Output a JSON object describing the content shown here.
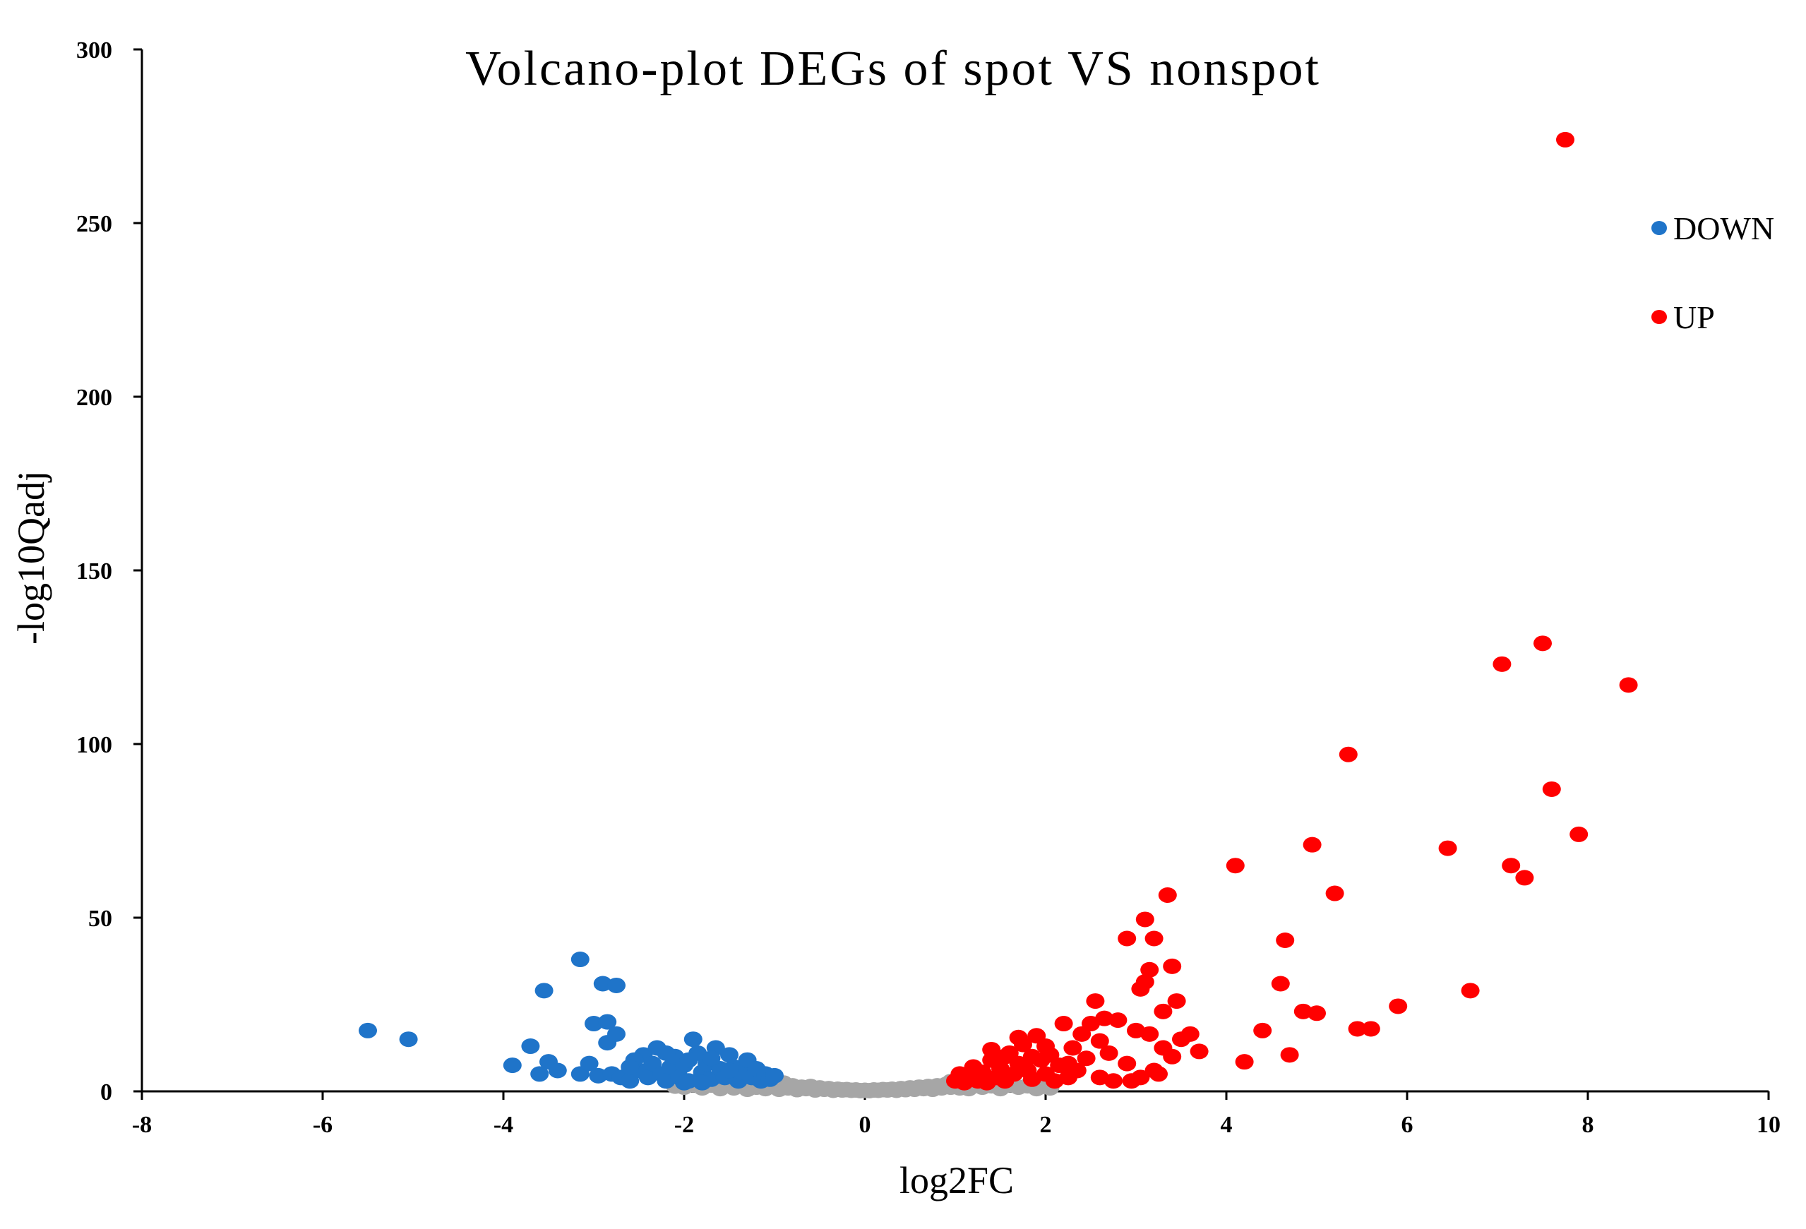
{
  "chart_data": {
    "type": "scatter",
    "title": "Volcano-plot DEGs of spot VS nonspot",
    "xlabel": "log2FC",
    "ylabel": "-log10Qadj",
    "xlim": [
      -8,
      10
    ],
    "ylim": [
      0,
      300
    ],
    "xticks": [
      -8,
      -6,
      -4,
      -2,
      0,
      2,
      4,
      6,
      8,
      10
    ],
    "yticks": [
      0,
      50,
      100,
      150,
      200,
      250,
      300
    ],
    "xtick_labels": [
      "-8",
      "-6",
      "-4",
      "-2",
      "0",
      "2",
      "4",
      "6",
      "8",
      "10"
    ],
    "ytick_labels": [
      "0",
      "50",
      "100",
      "150",
      "200",
      "250",
      "300"
    ],
    "grid": false,
    "legend_position": "top-right",
    "series": [
      {
        "name": "NS",
        "color": "#a6a6a6",
        "in_legend": false,
        "points": [
          [
            -2.1,
            1.5
          ],
          [
            -2.0,
            1.2
          ],
          [
            -1.9,
            2.0
          ],
          [
            -1.8,
            1.0
          ],
          [
            -1.7,
            1.8
          ],
          [
            -1.6,
            0.8
          ],
          [
            -1.5,
            2.2
          ],
          [
            -1.45,
            1.0
          ],
          [
            -1.4,
            1.6
          ],
          [
            -1.3,
            0.6
          ],
          [
            -1.25,
            2.0
          ],
          [
            -1.2,
            1.2
          ],
          [
            -1.1,
            0.8
          ],
          [
            -1.05,
            1.8
          ],
          [
            -1.0,
            1.4
          ],
          [
            -0.95,
            0.6
          ],
          [
            -0.9,
            2.4
          ],
          [
            -0.85,
            1.0
          ],
          [
            -0.8,
            1.6
          ],
          [
            -0.75,
            0.5
          ],
          [
            -0.7,
            1.2
          ],
          [
            -0.65,
            0.8
          ],
          [
            -0.6,
            1.4
          ],
          [
            -0.55,
            0.4
          ],
          [
            -0.5,
            1.0
          ],
          [
            -0.45,
            0.6
          ],
          [
            -0.4,
            0.8
          ],
          [
            -0.35,
            0.3
          ],
          [
            -0.3,
            0.6
          ],
          [
            -0.25,
            0.4
          ],
          [
            -0.2,
            0.5
          ],
          [
            -0.15,
            0.3
          ],
          [
            -0.1,
            0.4
          ],
          [
            -0.05,
            0.2
          ],
          [
            0.0,
            0.3
          ],
          [
            0.05,
            0.2
          ],
          [
            0.1,
            0.4
          ],
          [
            0.15,
            0.3
          ],
          [
            0.2,
            0.5
          ],
          [
            0.25,
            0.4
          ],
          [
            0.3,
            0.6
          ],
          [
            0.35,
            0.3
          ],
          [
            0.4,
            0.8
          ],
          [
            0.45,
            0.5
          ],
          [
            0.5,
            1.0
          ],
          [
            0.55,
            0.6
          ],
          [
            0.6,
            1.2
          ],
          [
            0.65,
            0.8
          ],
          [
            0.7,
            1.4
          ],
          [
            0.75,
            0.6
          ],
          [
            0.8,
            1.6
          ],
          [
            0.85,
            1.0
          ],
          [
            0.9,
            2.0
          ],
          [
            0.95,
            1.2
          ],
          [
            1.0,
            2.6
          ],
          [
            1.05,
            1.0
          ],
          [
            1.1,
            1.8
          ],
          [
            1.15,
            0.8
          ],
          [
            1.2,
            2.2
          ],
          [
            1.3,
            1.2
          ],
          [
            1.4,
            1.6
          ],
          [
            1.5,
            0.8
          ],
          [
            1.6,
            2.0
          ],
          [
            1.7,
            1.2
          ],
          [
            1.8,
            1.6
          ],
          [
            1.9,
            0.8
          ],
          [
            2.0,
            1.4
          ],
          [
            2.05,
            1.0
          ],
          [
            -1.35,
            2.8
          ],
          [
            0.95,
            2.8
          ]
        ]
      },
      {
        "name": "DOWN",
        "color": "#1f74c9",
        "in_legend": true,
        "points": [
          [
            -5.5,
            17.5
          ],
          [
            -5.05,
            15
          ],
          [
            -3.9,
            7.5
          ],
          [
            -3.7,
            13
          ],
          [
            -3.6,
            5
          ],
          [
            -3.55,
            29
          ],
          [
            -3.5,
            8.5
          ],
          [
            -3.4,
            6
          ],
          [
            -3.15,
            5
          ],
          [
            -3.15,
            38
          ],
          [
            -3.05,
            8
          ],
          [
            -3.0,
            19.5
          ],
          [
            -2.95,
            4.5
          ],
          [
            -2.9,
            31
          ],
          [
            -2.85,
            20
          ],
          [
            -2.85,
            14
          ],
          [
            -2.8,
            5
          ],
          [
            -2.75,
            30.5
          ],
          [
            -2.75,
            16.5
          ],
          [
            -2.7,
            4
          ],
          [
            -2.6,
            3
          ],
          [
            -2.5,
            6
          ],
          [
            -2.45,
            10.5
          ],
          [
            -2.4,
            4
          ],
          [
            -2.35,
            8
          ],
          [
            -2.3,
            12.5
          ],
          [
            -2.25,
            5
          ],
          [
            -2.2,
            3
          ],
          [
            -2.15,
            7
          ],
          [
            -2.1,
            10
          ],
          [
            -2.05,
            4
          ],
          [
            -2.0,
            7.5
          ],
          [
            -1.95,
            3
          ],
          [
            -1.9,
            15
          ],
          [
            -1.85,
            11
          ],
          [
            -1.8,
            5.5
          ],
          [
            -1.75,
            8
          ],
          [
            -1.7,
            3.5
          ],
          [
            -1.65,
            12.5
          ],
          [
            -1.6,
            6.5
          ],
          [
            -1.55,
            4
          ],
          [
            -1.5,
            10.5
          ],
          [
            -1.45,
            7
          ],
          [
            -1.4,
            3
          ],
          [
            -1.35,
            5.5
          ],
          [
            -1.3,
            9
          ],
          [
            -1.25,
            4
          ],
          [
            -1.2,
            6.5
          ],
          [
            -1.15,
            3
          ],
          [
            -1.1,
            5
          ],
          [
            -1.05,
            3.5
          ],
          [
            -1.0,
            4.5
          ],
          [
            -2.55,
            9
          ],
          [
            -2.2,
            11
          ],
          [
            -1.95,
            9
          ],
          [
            -1.7,
            9.5
          ],
          [
            -1.5,
            6
          ],
          [
            -2.0,
            2.5
          ],
          [
            -1.8,
            2.5
          ],
          [
            -2.6,
            7
          ]
        ]
      },
      {
        "name": "UP",
        "color": "#ff0000",
        "in_legend": true,
        "points": [
          [
            1.0,
            3
          ],
          [
            1.05,
            5
          ],
          [
            1.1,
            2.5
          ],
          [
            1.15,
            4
          ],
          [
            1.2,
            7
          ],
          [
            1.25,
            3
          ],
          [
            1.3,
            5.5
          ],
          [
            1.35,
            2.5
          ],
          [
            1.4,
            9
          ],
          [
            1.45,
            4
          ],
          [
            1.5,
            6.5
          ],
          [
            1.55,
            3
          ],
          [
            1.6,
            11
          ],
          [
            1.65,
            5
          ],
          [
            1.7,
            8
          ],
          [
            1.75,
            13.5
          ],
          [
            1.8,
            6
          ],
          [
            1.85,
            3.5
          ],
          [
            1.9,
            16
          ],
          [
            1.95,
            9
          ],
          [
            2.0,
            5
          ],
          [
            2.05,
            10.5
          ],
          [
            2.1,
            3
          ],
          [
            2.15,
            7.5
          ],
          [
            2.2,
            19.5
          ],
          [
            2.25,
            4
          ],
          [
            2.3,
            12.5
          ],
          [
            2.35,
            6
          ],
          [
            2.4,
            16.5
          ],
          [
            2.45,
            9.5
          ],
          [
            2.5,
            19.5
          ],
          [
            2.55,
            26
          ],
          [
            2.6,
            4
          ],
          [
            2.65,
            21
          ],
          [
            2.7,
            11
          ],
          [
            2.75,
            3
          ],
          [
            2.8,
            20.5
          ],
          [
            2.9,
            44
          ],
          [
            2.95,
            3
          ],
          [
            3.0,
            17.5
          ],
          [
            3.05,
            29.5
          ],
          [
            3.05,
            4
          ],
          [
            3.1,
            49.5
          ],
          [
            3.1,
            31.5
          ],
          [
            3.15,
            35
          ],
          [
            3.15,
            16.5
          ],
          [
            3.2,
            44
          ],
          [
            3.25,
            5
          ],
          [
            3.3,
            12.5
          ],
          [
            3.3,
            23
          ],
          [
            3.35,
            56.5
          ],
          [
            3.4,
            10
          ],
          [
            3.4,
            36
          ],
          [
            3.45,
            26
          ],
          [
            3.5,
            15
          ],
          [
            3.6,
            16.5
          ],
          [
            3.7,
            11.5
          ],
          [
            4.1,
            65
          ],
          [
            4.2,
            8.5
          ],
          [
            4.4,
            17.5
          ],
          [
            4.6,
            31
          ],
          [
            4.65,
            43.5
          ],
          [
            4.7,
            10.5
          ],
          [
            4.85,
            23
          ],
          [
            4.95,
            71
          ],
          [
            5.0,
            22.5
          ],
          [
            5.2,
            57
          ],
          [
            5.35,
            97
          ],
          [
            5.45,
            18
          ],
          [
            5.6,
            18
          ],
          [
            5.9,
            24.5
          ],
          [
            6.45,
            70
          ],
          [
            6.7,
            29
          ],
          [
            7.05,
            123
          ],
          [
            7.15,
            65
          ],
          [
            7.3,
            61.5
          ],
          [
            7.5,
            129
          ],
          [
            7.6,
            87
          ],
          [
            7.75,
            274
          ],
          [
            7.9,
            74
          ],
          [
            8.45,
            117
          ],
          [
            1.4,
            12
          ],
          [
            1.55,
            10
          ],
          [
            1.7,
            15.5
          ],
          [
            2.0,
            13
          ],
          [
            2.25,
            8
          ],
          [
            1.85,
            10
          ],
          [
            2.6,
            14.5
          ],
          [
            2.9,
            8
          ],
          [
            3.2,
            6
          ]
        ]
      }
    ]
  }
}
